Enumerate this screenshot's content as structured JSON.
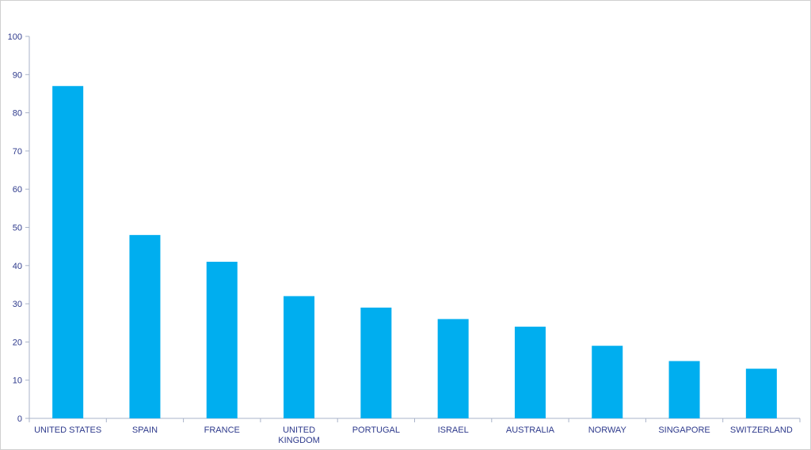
{
  "chart_data": {
    "type": "bar",
    "categories": [
      "UNITED STATES",
      "SPAIN",
      "FRANCE",
      "UNITED KINGDOM",
      "PORTUGAL",
      "ISRAEL",
      "AUSTRALIA",
      "NORWAY",
      "SINGAPORE",
      "SWITZERLAND"
    ],
    "values": [
      87,
      48,
      41,
      32,
      29,
      26,
      24,
      19,
      15,
      13
    ],
    "color": "#00aeef",
    "ylim": [
      0,
      100
    ],
    "yticks": [
      0,
      10,
      20,
      30,
      40,
      50,
      60,
      70,
      80,
      90,
      100
    ],
    "grid": false
  }
}
